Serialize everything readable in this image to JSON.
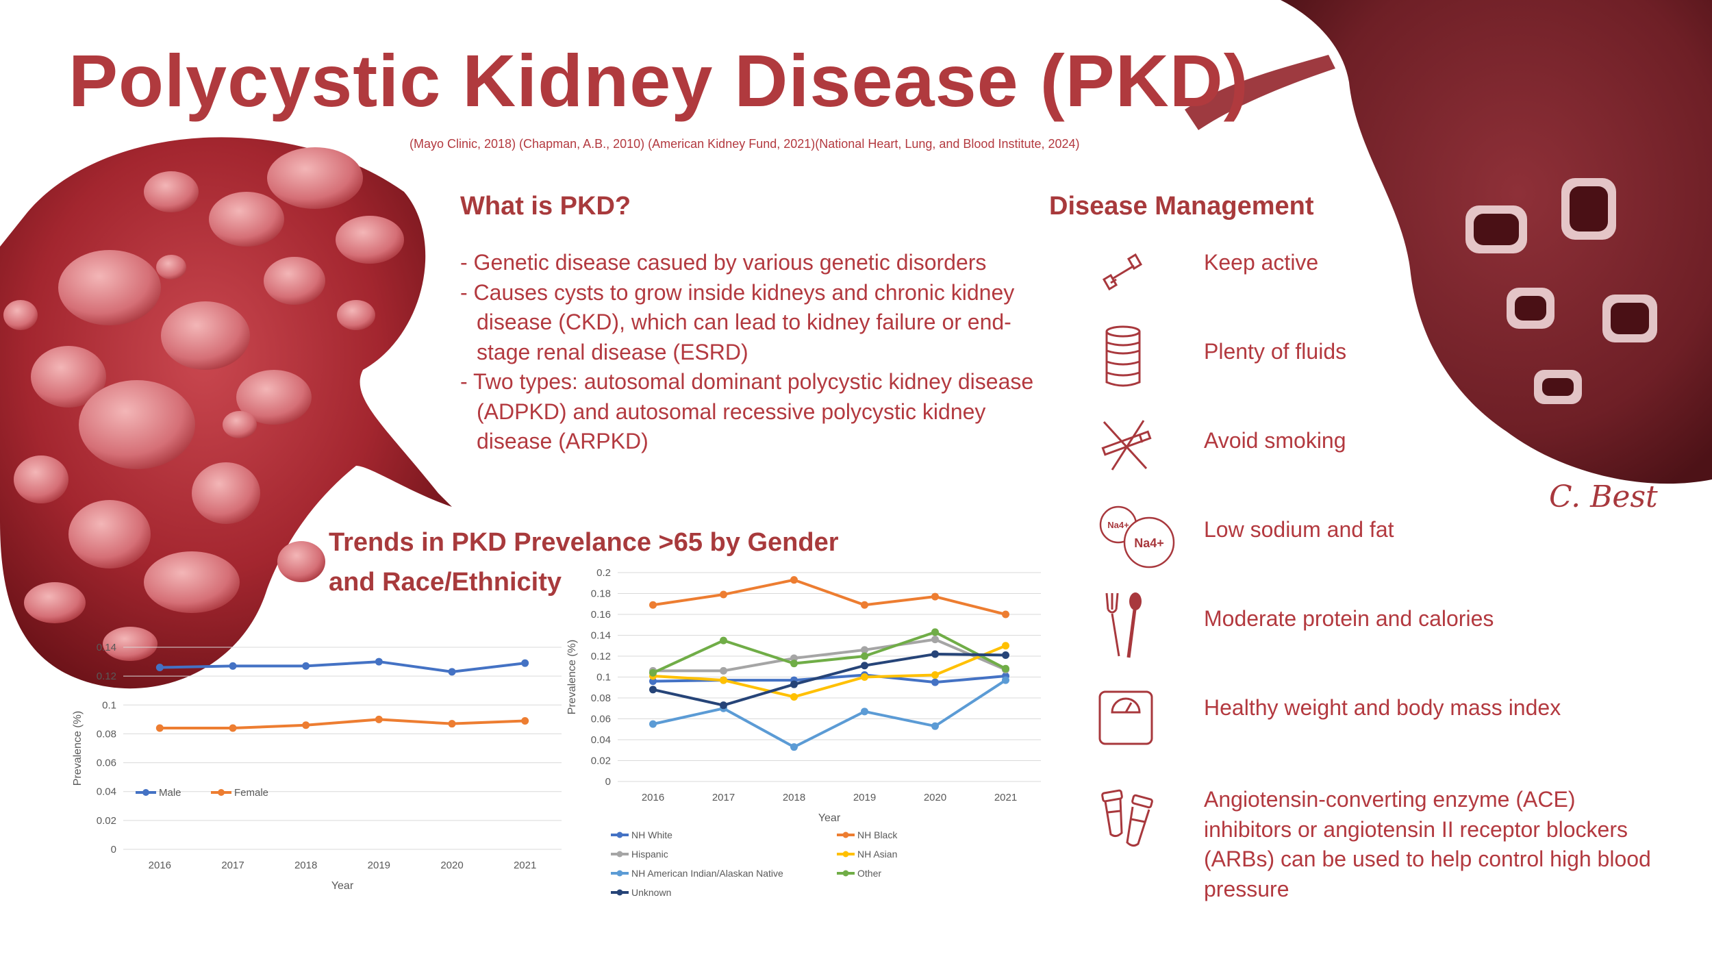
{
  "title": "Polycystic Kidney Disease (PKD)",
  "citation": "(Mayo Clinic, 2018) (Chapman, A.B., 2010) (American Kidney Fund, 2021)(National Heart, Lung, and Blood Institute, 2024)",
  "what_is": {
    "heading": "What is PKD?",
    "items": [
      "- Genetic disease casued by various genetic disorders",
      "- Causes cysts to grow inside kidneys and chronic kidney disease (CKD), which can lead to kidney failure or end-stage renal disease (ESRD)",
      "- Two types: autosomal dominant polycystic kidney disease (ADPKD) and autosomal recessive polycystic kidney disease (ARPKD)"
    ]
  },
  "management": {
    "heading": "Disease Management",
    "items": [
      {
        "icon": "dumbbell-icon",
        "label": "Keep active"
      },
      {
        "icon": "fluid-can-icon",
        "label": "Plenty of fluids"
      },
      {
        "icon": "no-smoking-icon",
        "label": "Avoid smoking"
      },
      {
        "icon": "sodium-icon",
        "label": "Low sodium and fat"
      },
      {
        "icon": "fork-spoon-icon",
        "label": "Moderate protein and calories"
      },
      {
        "icon": "scale-icon",
        "label": "Healthy weight and body mass index"
      },
      {
        "icon": "pill-bottles-icon",
        "label": "Angiotensin-converting enzyme (ACE) inhibitors or angiotensin II receptor blockers (ARBs) can be used to help control high blood pressure"
      }
    ],
    "sodium_label": "Na4+"
  },
  "signature": "C. Best",
  "trends_heading_line1": "Trends in PKD Prevelance >65 by Gender",
  "trends_heading_line2": "and Race/Ethnicity",
  "colors": {
    "title": "#b03a3e",
    "body": "#b3393f",
    "male": "#4472c4",
    "female": "#ed7d31"
  },
  "chart_data": [
    {
      "type": "line",
      "title": "",
      "xlabel": "Year",
      "ylabel": "Prevalence (%)",
      "categories": [
        "2016",
        "2017",
        "2018",
        "2019",
        "2020",
        "2021"
      ],
      "ylim": [
        0,
        0.14
      ],
      "yticks": [
        "0",
        "0.02",
        "0.04",
        "0.06",
        "0.08",
        "0.1",
        "0.12",
        "0.14"
      ],
      "series": [
        {
          "name": "Male",
          "color": "#4472c4",
          "values": [
            0.126,
            0.127,
            0.127,
            0.13,
            0.123,
            0.129
          ]
        },
        {
          "name": "Female",
          "color": "#ed7d31",
          "values": [
            0.084,
            0.084,
            0.086,
            0.09,
            0.087,
            0.089
          ]
        }
      ],
      "legend": "inside-left"
    },
    {
      "type": "line",
      "title": "",
      "xlabel": "Year",
      "ylabel": "Prevalence (%)",
      "categories": [
        "2016",
        "2017",
        "2018",
        "2019",
        "2020",
        "2021"
      ],
      "ylim": [
        0,
        0.2
      ],
      "yticks": [
        "0",
        "0.02",
        "0.04",
        "0.06",
        "0.08",
        "0.1",
        "0.12",
        "0.14",
        "0.16",
        "0.18",
        "0.2"
      ],
      "series": [
        {
          "name": "NH White",
          "color": "#4472c4",
          "values": [
            0.096,
            0.097,
            0.097,
            0.102,
            0.095,
            0.101
          ]
        },
        {
          "name": "NH Black",
          "color": "#ed7d31",
          "values": [
            0.169,
            0.179,
            0.193,
            0.169,
            0.177,
            0.16
          ]
        },
        {
          "name": "Hispanic",
          "color": "#a5a5a5",
          "values": [
            0.106,
            0.106,
            0.118,
            0.126,
            0.136,
            0.107
          ]
        },
        {
          "name": "NH Asian",
          "color": "#ffc000",
          "values": [
            0.101,
            0.097,
            0.081,
            0.1,
            0.102,
            0.13
          ]
        },
        {
          "name": "NH American Indian/Alaskan Native",
          "color": "#5b9bd5",
          "values": [
            0.055,
            0.07,
            0.033,
            0.067,
            0.053,
            0.097
          ]
        },
        {
          "name": "Other",
          "color": "#70ad47",
          "values": [
            0.104,
            0.135,
            0.113,
            0.12,
            0.143,
            0.108
          ]
        },
        {
          "name": "Unknown",
          "color": "#264478",
          "values": [
            0.088,
            0.073,
            0.093,
            0.111,
            0.122,
            0.121
          ]
        }
      ],
      "legend": "bottom"
    }
  ]
}
